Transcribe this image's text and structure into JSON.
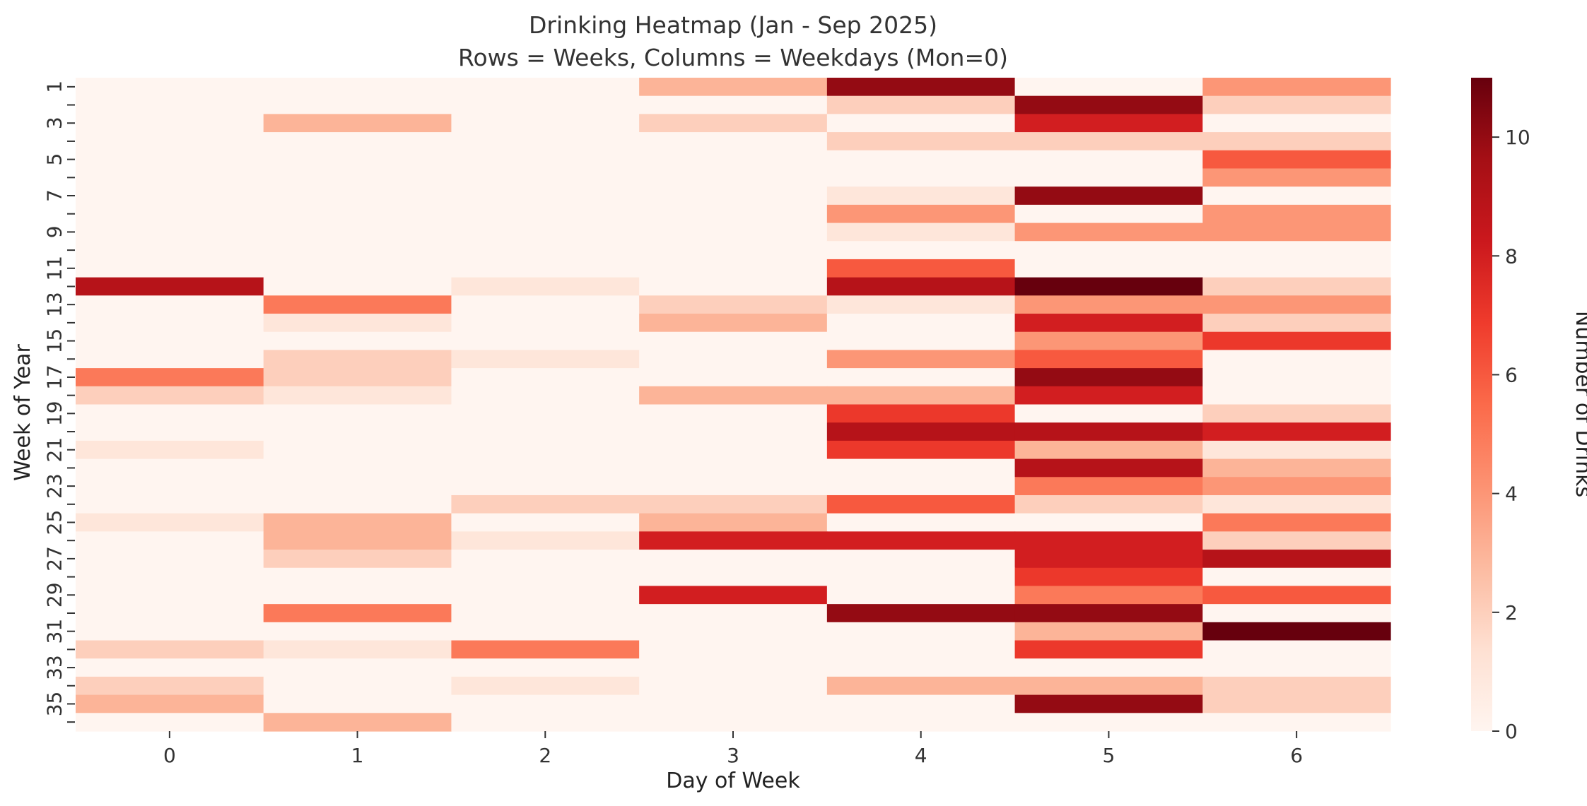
{
  "chart_data": {
    "type": "heatmap",
    "title": "Drinking Heatmap (Jan - Sep 2025)",
    "subtitle": "Rows = Weeks, Columns = Weekdays (Mon=0)",
    "xlabel": "Day of Week",
    "ylabel": "Week of Year",
    "x": [
      "0",
      "1",
      "2",
      "3",
      "4",
      "5",
      "6"
    ],
    "y": [
      1,
      2,
      3,
      4,
      5,
      6,
      7,
      8,
      9,
      10,
      11,
      12,
      13,
      14,
      15,
      16,
      17,
      18,
      19,
      20,
      21,
      22,
      23,
      24,
      25,
      26,
      27,
      28,
      29,
      30,
      31,
      32,
      33,
      34,
      35,
      36
    ],
    "y_tick_labels": [
      "1",
      "3",
      "5",
      "7",
      "9",
      "11",
      "13",
      "15",
      "17",
      "19",
      "21",
      "23",
      "25",
      "27",
      "29",
      "31",
      "33",
      "35"
    ],
    "colorbar": {
      "label": "Number of Drinks",
      "range": [
        0,
        11
      ],
      "ticks": [
        "0",
        "2",
        "4",
        "6",
        "8",
        "10"
      ],
      "colormap": "Reds"
    },
    "values": [
      [
        0,
        0,
        0,
        3,
        10,
        0,
        4
      ],
      [
        0,
        0,
        0,
        0,
        2,
        10,
        2
      ],
      [
        0,
        3,
        0,
        2,
        0,
        8,
        0
      ],
      [
        0,
        0,
        0,
        0,
        2,
        2,
        2
      ],
      [
        0,
        0,
        0,
        0,
        0,
        0,
        6
      ],
      [
        0,
        0,
        0,
        0,
        0,
        0,
        4
      ],
      [
        0,
        0,
        0,
        0,
        1,
        10,
        0
      ],
      [
        0,
        0,
        0,
        0,
        4,
        0,
        4
      ],
      [
        0,
        0,
        0,
        0,
        1,
        4,
        4
      ],
      [
        0,
        0,
        0,
        0,
        0,
        0,
        0
      ],
      [
        0,
        0,
        0,
        0,
        6,
        0,
        0
      ],
      [
        9,
        0,
        1,
        0,
        9,
        11,
        2
      ],
      [
        0,
        5,
        0,
        2,
        1,
        4,
        4
      ],
      [
        0,
        1,
        0,
        3,
        0,
        8,
        2
      ],
      [
        0,
        0,
        0,
        0,
        0,
        4,
        7
      ],
      [
        0,
        2,
        1,
        0,
        4,
        6,
        0
      ],
      [
        5,
        2,
        0,
        0,
        0,
        10,
        0
      ],
      [
        2,
        1,
        0,
        3,
        3,
        8,
        0
      ],
      [
        0,
        0,
        0,
        0,
        7,
        0,
        2
      ],
      [
        0,
        0,
        0,
        0,
        9,
        9,
        8
      ],
      [
        1,
        0,
        0,
        0,
        7,
        3,
        1
      ],
      [
        0,
        0,
        0,
        0,
        0,
        9,
        3
      ],
      [
        0,
        0,
        0,
        0,
        0,
        5,
        4
      ],
      [
        0,
        0,
        2,
        2,
        6,
        2,
        1
      ],
      [
        1,
        3,
        0,
        3,
        0,
        0,
        5
      ],
      [
        0,
        3,
        1,
        8,
        8,
        8,
        2
      ],
      [
        0,
        2,
        0,
        0,
        0,
        8,
        9
      ],
      [
        0,
        0,
        0,
        0,
        0,
        7,
        0
      ],
      [
        0,
        0,
        0,
        8,
        0,
        5,
        6
      ],
      [
        0,
        5,
        0,
        0,
        10,
        10,
        0
      ],
      [
        0,
        0,
        0,
        0,
        0,
        3,
        11
      ],
      [
        2,
        1,
        5,
        0,
        0,
        7,
        0
      ],
      [
        0,
        0,
        0,
        0,
        0,
        0,
        0
      ],
      [
        2,
        0,
        1,
        0,
        3,
        3,
        2
      ],
      [
        3,
        0,
        0,
        0,
        0,
        10,
        2
      ],
      [
        0,
        3,
        0,
        0,
        0,
        0,
        0
      ]
    ]
  }
}
